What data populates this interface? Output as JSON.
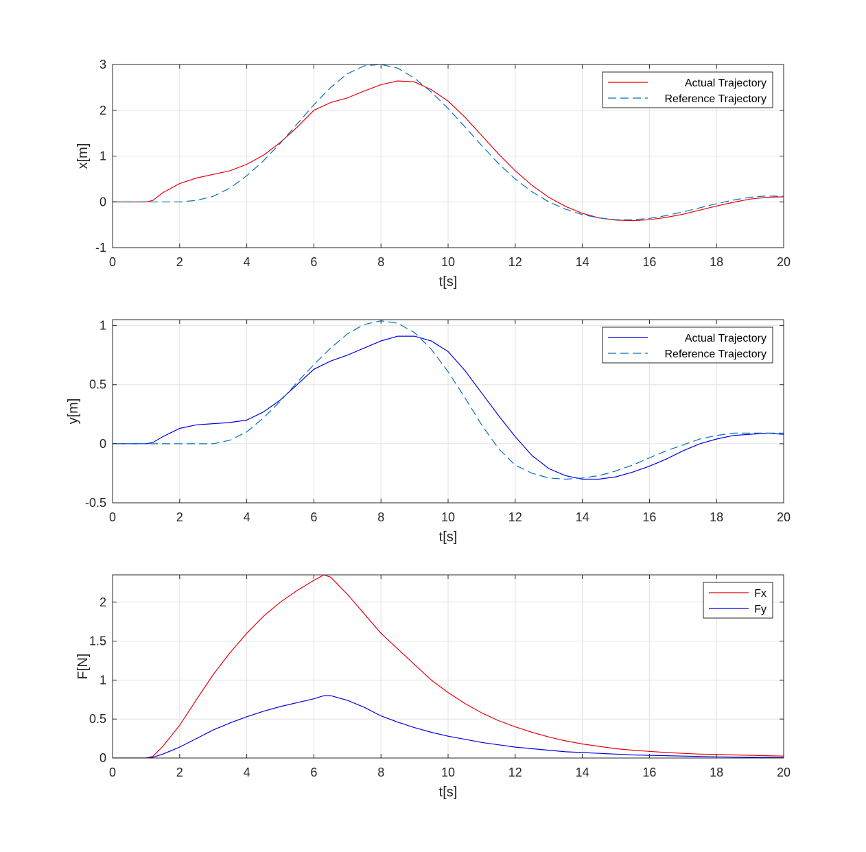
{
  "chart_data": [
    {
      "type": "line",
      "title": "",
      "xlabel": "t[s]",
      "ylabel": "x[m]",
      "xlim": [
        0,
        20
      ],
      "ylim": [
        -1,
        3
      ],
      "xticks": [
        0,
        2,
        4,
        6,
        8,
        10,
        12,
        14,
        16,
        18,
        20
      ],
      "yticks": [
        -1,
        0,
        1,
        2,
        3
      ],
      "grid": true,
      "legend_position": "top-right",
      "series": [
        {
          "name": "Actual Trajectory",
          "color": "#e8000b",
          "style": "solid",
          "x": [
            0,
            0.5,
            1,
            1.2,
            1.5,
            2,
            2.5,
            3,
            3.5,
            4,
            4.5,
            5,
            5.5,
            6,
            6.5,
            7,
            7.5,
            8,
            8.5,
            9,
            9.5,
            10,
            10.5,
            11,
            11.5,
            12,
            12.5,
            13,
            13.5,
            14,
            14.5,
            15,
            15.5,
            16,
            16.5,
            17,
            17.5,
            18,
            18.5,
            19,
            19.5,
            20
          ],
          "y": [
            0,
            0,
            0,
            0.03,
            0.2,
            0.4,
            0.52,
            0.6,
            0.68,
            0.82,
            1.02,
            1.3,
            1.63,
            2.0,
            2.17,
            2.27,
            2.42,
            2.56,
            2.64,
            2.62,
            2.45,
            2.2,
            1.85,
            1.45,
            1.05,
            0.68,
            0.36,
            0.1,
            -0.1,
            -0.25,
            -0.35,
            -0.4,
            -0.41,
            -0.39,
            -0.34,
            -0.27,
            -0.18,
            -0.09,
            -0.01,
            0.06,
            0.1,
            0.11
          ]
        },
        {
          "name": "Reference Trajectory",
          "color": "#0072bd",
          "style": "dashed",
          "x": [
            0,
            0.5,
            1,
            1.5,
            2,
            2.5,
            3,
            3.5,
            4,
            4.5,
            5,
            5.5,
            6,
            6.5,
            7,
            7.5,
            8,
            8.5,
            9,
            9.5,
            10,
            10.5,
            11,
            11.5,
            12,
            12.5,
            13,
            13.5,
            14,
            14.5,
            15,
            15.5,
            16,
            16.5,
            17,
            17.5,
            18,
            18.5,
            19,
            19.5,
            20
          ],
          "y": [
            0,
            0,
            0,
            0,
            0,
            0.03,
            0.12,
            0.3,
            0.57,
            0.9,
            1.28,
            1.7,
            2.12,
            2.5,
            2.8,
            2.97,
            3.0,
            2.92,
            2.7,
            2.4,
            2.04,
            1.64,
            1.23,
            0.84,
            0.5,
            0.22,
            0.0,
            -0.16,
            -0.28,
            -0.35,
            -0.39,
            -0.39,
            -0.36,
            -0.3,
            -0.22,
            -0.13,
            -0.04,
            0.04,
            0.1,
            0.13,
            0.12
          ]
        }
      ]
    },
    {
      "type": "line",
      "title": "",
      "xlabel": "t[s]",
      "ylabel": "y[m]",
      "xlim": [
        0,
        20
      ],
      "ylim": [
        -0.5,
        1.05
      ],
      "xticks": [
        0,
        2,
        4,
        6,
        8,
        10,
        12,
        14,
        16,
        18,
        20
      ],
      "yticks": [
        -0.5,
        0,
        0.5,
        1
      ],
      "grid": true,
      "legend_position": "top-right",
      "series": [
        {
          "name": "Actual Trajectory",
          "color": "#0000e0",
          "style": "solid",
          "x": [
            0,
            0.5,
            1,
            1.2,
            1.5,
            2,
            2.5,
            3,
            3.5,
            4,
            4.5,
            5,
            5.5,
            6,
            6.5,
            7,
            7.5,
            8,
            8.5,
            9,
            9.5,
            10,
            10.5,
            11,
            11.5,
            12,
            12.5,
            13,
            13.5,
            14,
            14.5,
            15,
            15.5,
            16,
            16.5,
            17,
            17.5,
            18,
            18.5,
            19,
            19.5,
            20
          ],
          "y": [
            0,
            0,
            0,
            0.01,
            0.06,
            0.13,
            0.16,
            0.17,
            0.18,
            0.2,
            0.27,
            0.37,
            0.5,
            0.63,
            0.7,
            0.75,
            0.81,
            0.87,
            0.91,
            0.91,
            0.87,
            0.78,
            0.62,
            0.43,
            0.24,
            0.06,
            -0.1,
            -0.21,
            -0.27,
            -0.3,
            -0.3,
            -0.28,
            -0.24,
            -0.19,
            -0.13,
            -0.06,
            0.0,
            0.04,
            0.07,
            0.08,
            0.09,
            0.08
          ]
        },
        {
          "name": "Reference Trajectory",
          "color": "#0072bd",
          "style": "dashed",
          "x": [
            0,
            0.5,
            1,
            1.5,
            2,
            2.5,
            3,
            3.5,
            4,
            4.5,
            5,
            5.5,
            6,
            6.5,
            7,
            7.5,
            8,
            8.5,
            9,
            9.5,
            10,
            10.5,
            11,
            11.5,
            12,
            12.5,
            13,
            13.5,
            14,
            14.5,
            15,
            15.5,
            16,
            16.5,
            17,
            17.5,
            18,
            18.5,
            19,
            19.5,
            20
          ],
          "y": [
            0,
            0,
            0,
            0,
            0,
            0,
            0,
            0.03,
            0.1,
            0.22,
            0.36,
            0.52,
            0.67,
            0.81,
            0.93,
            1.01,
            1.04,
            1.02,
            0.94,
            0.8,
            0.61,
            0.39,
            0.16,
            -0.04,
            -0.18,
            -0.25,
            -0.29,
            -0.3,
            -0.29,
            -0.27,
            -0.23,
            -0.18,
            -0.12,
            -0.06,
            -0.01,
            0.04,
            0.07,
            0.09,
            0.09,
            0.09,
            0.09
          ]
        }
      ]
    },
    {
      "type": "line",
      "title": "",
      "xlabel": "t[s]",
      "ylabel": "F[N]",
      "xlim": [
        0,
        20
      ],
      "ylim": [
        0,
        2.35
      ],
      "xticks": [
        0,
        2,
        4,
        6,
        8,
        10,
        12,
        14,
        16,
        18,
        20
      ],
      "yticks": [
        0,
        0.5,
        1,
        1.5,
        2
      ],
      "grid": true,
      "legend_position": "top-right",
      "series": [
        {
          "name": "Fx",
          "color": "#e8000b",
          "style": "solid",
          "x": [
            0,
            0.5,
            1,
            1.2,
            1.5,
            2,
            2.5,
            3,
            3.5,
            4,
            4.5,
            5,
            5.5,
            6,
            6.3,
            6.5,
            7,
            7.5,
            8,
            8.5,
            9,
            9.5,
            10,
            10.5,
            11,
            11.5,
            12,
            12.5,
            13,
            13.5,
            14,
            14.5,
            15,
            15.5,
            16,
            16.5,
            17,
            17.5,
            18,
            18.5,
            19,
            19.5,
            20
          ],
          "y": [
            0,
            0,
            0,
            0.02,
            0.15,
            0.42,
            0.75,
            1.07,
            1.35,
            1.6,
            1.82,
            2.0,
            2.15,
            2.28,
            2.35,
            2.32,
            2.1,
            1.85,
            1.6,
            1.4,
            1.2,
            1.0,
            0.84,
            0.7,
            0.58,
            0.48,
            0.4,
            0.33,
            0.27,
            0.22,
            0.18,
            0.15,
            0.12,
            0.1,
            0.085,
            0.07,
            0.06,
            0.05,
            0.045,
            0.04,
            0.035,
            0.03,
            0.025
          ]
        },
        {
          "name": "Fy",
          "color": "#0000e0",
          "style": "solid",
          "x": [
            0,
            0.5,
            1,
            1.2,
            1.5,
            2,
            2.5,
            3,
            3.5,
            4,
            4.5,
            5,
            5.5,
            6,
            6.3,
            6.5,
            7,
            7.5,
            8,
            8.5,
            9,
            9.5,
            10,
            10.5,
            11,
            11.5,
            12,
            12.5,
            13,
            13.5,
            14,
            14.5,
            15,
            15.5,
            16,
            16.5,
            17,
            17.5,
            18,
            18.5,
            19,
            19.5,
            20
          ],
          "y": [
            0,
            0,
            0,
            0.01,
            0.05,
            0.14,
            0.25,
            0.36,
            0.45,
            0.53,
            0.6,
            0.66,
            0.71,
            0.76,
            0.8,
            0.8,
            0.74,
            0.65,
            0.54,
            0.46,
            0.39,
            0.33,
            0.28,
            0.24,
            0.2,
            0.17,
            0.14,
            0.12,
            0.1,
            0.08,
            0.07,
            0.06,
            0.05,
            0.04,
            0.035,
            0.03,
            0.025,
            0.02,
            0.015,
            0.012,
            0.01,
            0.008,
            0.006
          ]
        }
      ]
    }
  ]
}
